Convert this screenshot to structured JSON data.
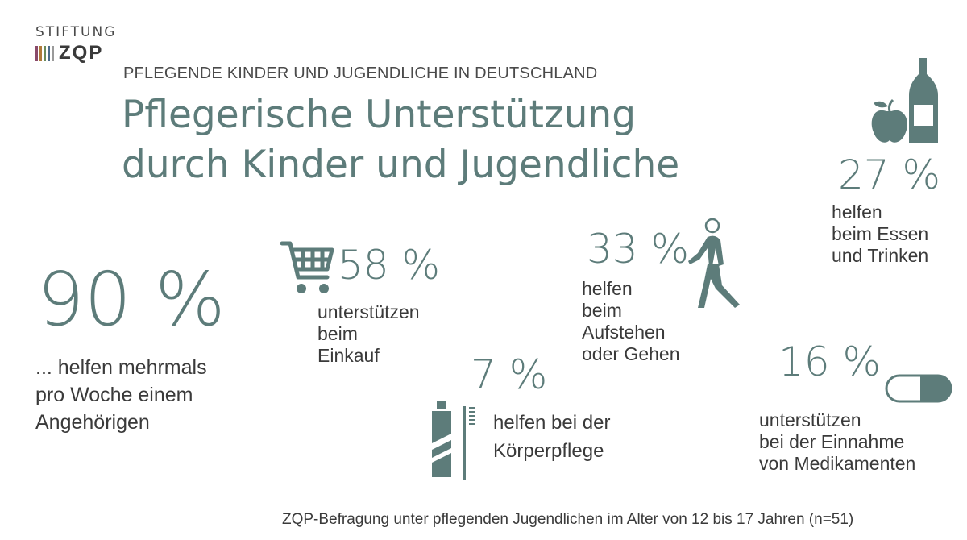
{
  "brand": {
    "top": "STIFTUNG",
    "name": "ZQP",
    "bar_colors": [
      "#8a4a6a",
      "#b07a3a",
      "#6a8a5a",
      "#4a6a8a",
      "#9a9a9a"
    ]
  },
  "header": {
    "kicker": "PFLEGENDE KINDER UND JUGENDLICHE IN DEUTSCHLAND",
    "title_line1": "Pflegerische Unterstützung",
    "title_line2": "durch Kinder und Jugendliche"
  },
  "stats": {
    "weekly": {
      "value": "90 %",
      "lines": [
        "... helfen mehrmals",
        "pro Woche einem",
        "Angehörigen"
      ]
    },
    "shopping": {
      "value": "58 %",
      "icon": "shopping-cart-icon",
      "lines": [
        "unterstützen",
        "beim",
        "Einkauf"
      ]
    },
    "mobility": {
      "value": "33 %",
      "icon": "walking-person-icon",
      "lines": [
        "helfen",
        "beim",
        "Aufstehen",
        "oder Gehen"
      ]
    },
    "eating": {
      "value": "27 %",
      "icon": "apple-bottle-icon",
      "lines": [
        "helfen",
        "beim Essen",
        "und Trinken"
      ]
    },
    "hygiene": {
      "value": "7 %",
      "icon": "toothpaste-toothbrush-icon",
      "lines": [
        "helfen bei der",
        "Körperpflege"
      ]
    },
    "medication": {
      "value": "16 %",
      "icon": "pill-capsule-icon",
      "lines": [
        "unterstützen",
        "bei der Einnahme",
        "von Medikamenten"
      ]
    }
  },
  "footnote": "ZQP-Befragung unter pflegenden Jugendlichen im Alter von 12 bis 17 Jahren (n=51)",
  "colors": {
    "accent": "#5d7c7a",
    "text": "#3a3a3a"
  }
}
